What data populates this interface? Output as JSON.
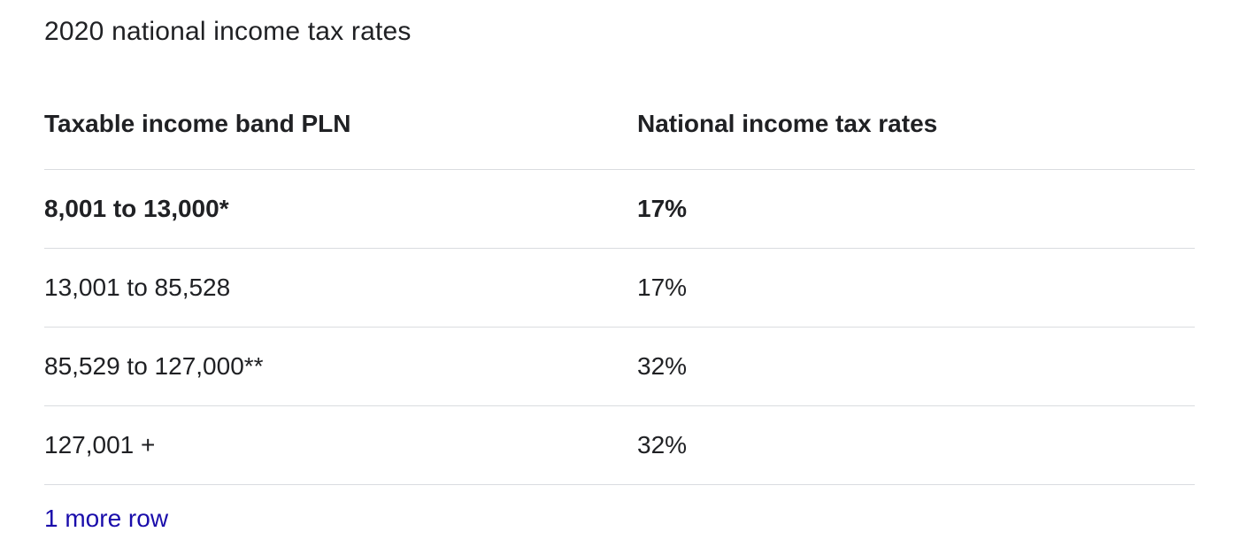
{
  "title": "2020 national income tax rates",
  "table": {
    "headers": [
      "Taxable income band PLN",
      "National income tax rates"
    ],
    "rows": [
      {
        "band": "8,001 to 13,000*",
        "rate": "17%"
      },
      {
        "band": "13,001 to 85,528",
        "rate": "17%"
      },
      {
        "band": "85,529 to 127,000**",
        "rate": "32%"
      },
      {
        "band": "127,001 +",
        "rate": "32%"
      }
    ],
    "more_rows_label": "1 more row"
  },
  "colors": {
    "text": "#202124",
    "divider": "#dadce0",
    "link": "#1a0dab"
  },
  "chart_data": {
    "type": "table",
    "title": "2020 national income tax rates",
    "columns": [
      "Taxable income band PLN",
      "National income tax rates"
    ],
    "rows": [
      [
        "8,001 to 13,000*",
        "17%"
      ],
      [
        "13,001 to 85,528",
        "17%"
      ],
      [
        "85,529 to 127,000**",
        "32%"
      ],
      [
        "127,001 +",
        "32%"
      ]
    ],
    "footer": "1 more row"
  }
}
